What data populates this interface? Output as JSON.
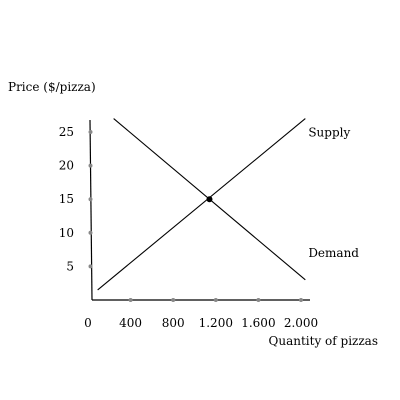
{
  "chart_data": {
    "type": "line",
    "title": "",
    "xlabel": "Quantity of pizzas",
    "ylabel": "Price ($/pizza)",
    "xlim": [
      0,
      2000
    ],
    "ylim": [
      0,
      27
    ],
    "x_ticks": [
      {
        "value": 0,
        "label": "0"
      },
      {
        "value": 400,
        "label": "400"
      },
      {
        "value": 800,
        "label": "800"
      },
      {
        "value": 1200,
        "label": "1.200"
      },
      {
        "value": 1600,
        "label": "1.600"
      },
      {
        "value": 2000,
        "label": "2.000"
      }
    ],
    "y_ticks": [
      {
        "value": 5,
        "label": "5"
      },
      {
        "value": 10,
        "label": "10"
      },
      {
        "value": 15,
        "label": "15"
      },
      {
        "value": 20,
        "label": "20"
      },
      {
        "value": 25,
        "label": "25"
      }
    ],
    "series": [
      {
        "name": "Supply",
        "x": [
          100,
          2050
        ],
        "y": [
          1.5,
          27
        ]
      },
      {
        "name": "Demand",
        "x": [
          250,
          2050
        ],
        "y": [
          27,
          3
        ]
      }
    ],
    "equilibrium": {
      "x": 1150,
      "y": 15
    }
  }
}
